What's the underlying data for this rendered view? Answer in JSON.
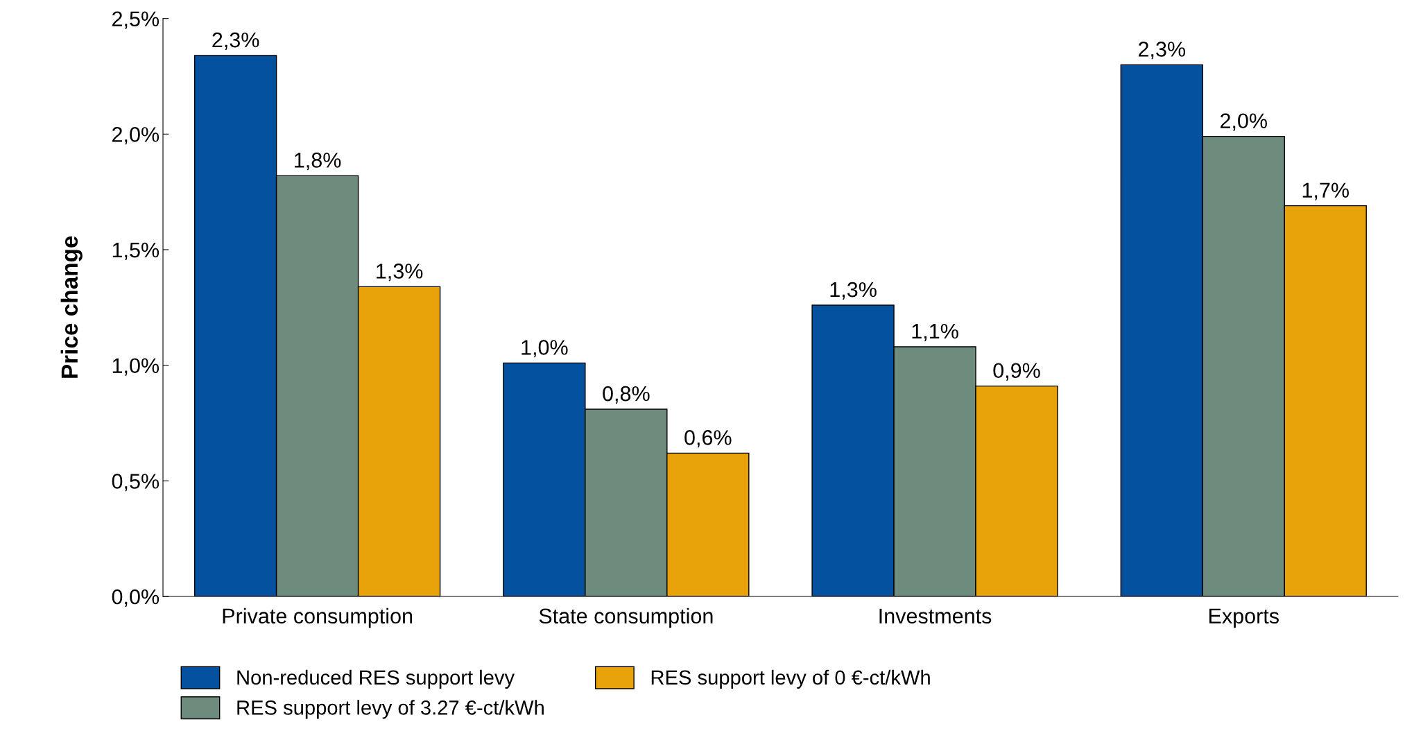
{
  "chart_data": {
    "type": "bar",
    "ylabel": "Price change",
    "categories": [
      "Private consumption",
      "State consumption",
      "Investments",
      "Exports"
    ],
    "series": [
      {
        "name": "Non-reduced RES support levy",
        "color": "#0451a0",
        "values": [
          2.34,
          1.01,
          1.26,
          2.3
        ],
        "value_labels": [
          "2,3%",
          "1,0%",
          "1,3%",
          "2,3%"
        ]
      },
      {
        "name": "RES support levy of 3.27 €-ct/kWh",
        "color": "#6e8c7e",
        "values": [
          1.82,
          0.81,
          1.08,
          1.99
        ],
        "value_labels": [
          "1,8%",
          "0,8%",
          "1,1%",
          "2,0%"
        ]
      },
      {
        "name": "RES support levy of 0 €-ct/kWh",
        "color": "#e8a30a",
        "values": [
          1.34,
          0.62,
          0.91,
          1.69
        ],
        "value_labels": [
          "1,3%",
          "0,6%",
          "0,9%",
          "1,7%"
        ]
      }
    ],
    "ylim": [
      0,
      2.5
    ],
    "yticks": [
      {
        "value": 0,
        "label": "0,0%"
      },
      {
        "value": 0.5,
        "label": "0,5%"
      },
      {
        "value": 1,
        "label": "1,0%"
      },
      {
        "value": 1.5,
        "label": "1,5%"
      },
      {
        "value": 2,
        "label": "2,0%"
      },
      {
        "value": 2.5,
        "label": "2,5%"
      }
    ],
    "grid": false,
    "legend": "bottom"
  }
}
